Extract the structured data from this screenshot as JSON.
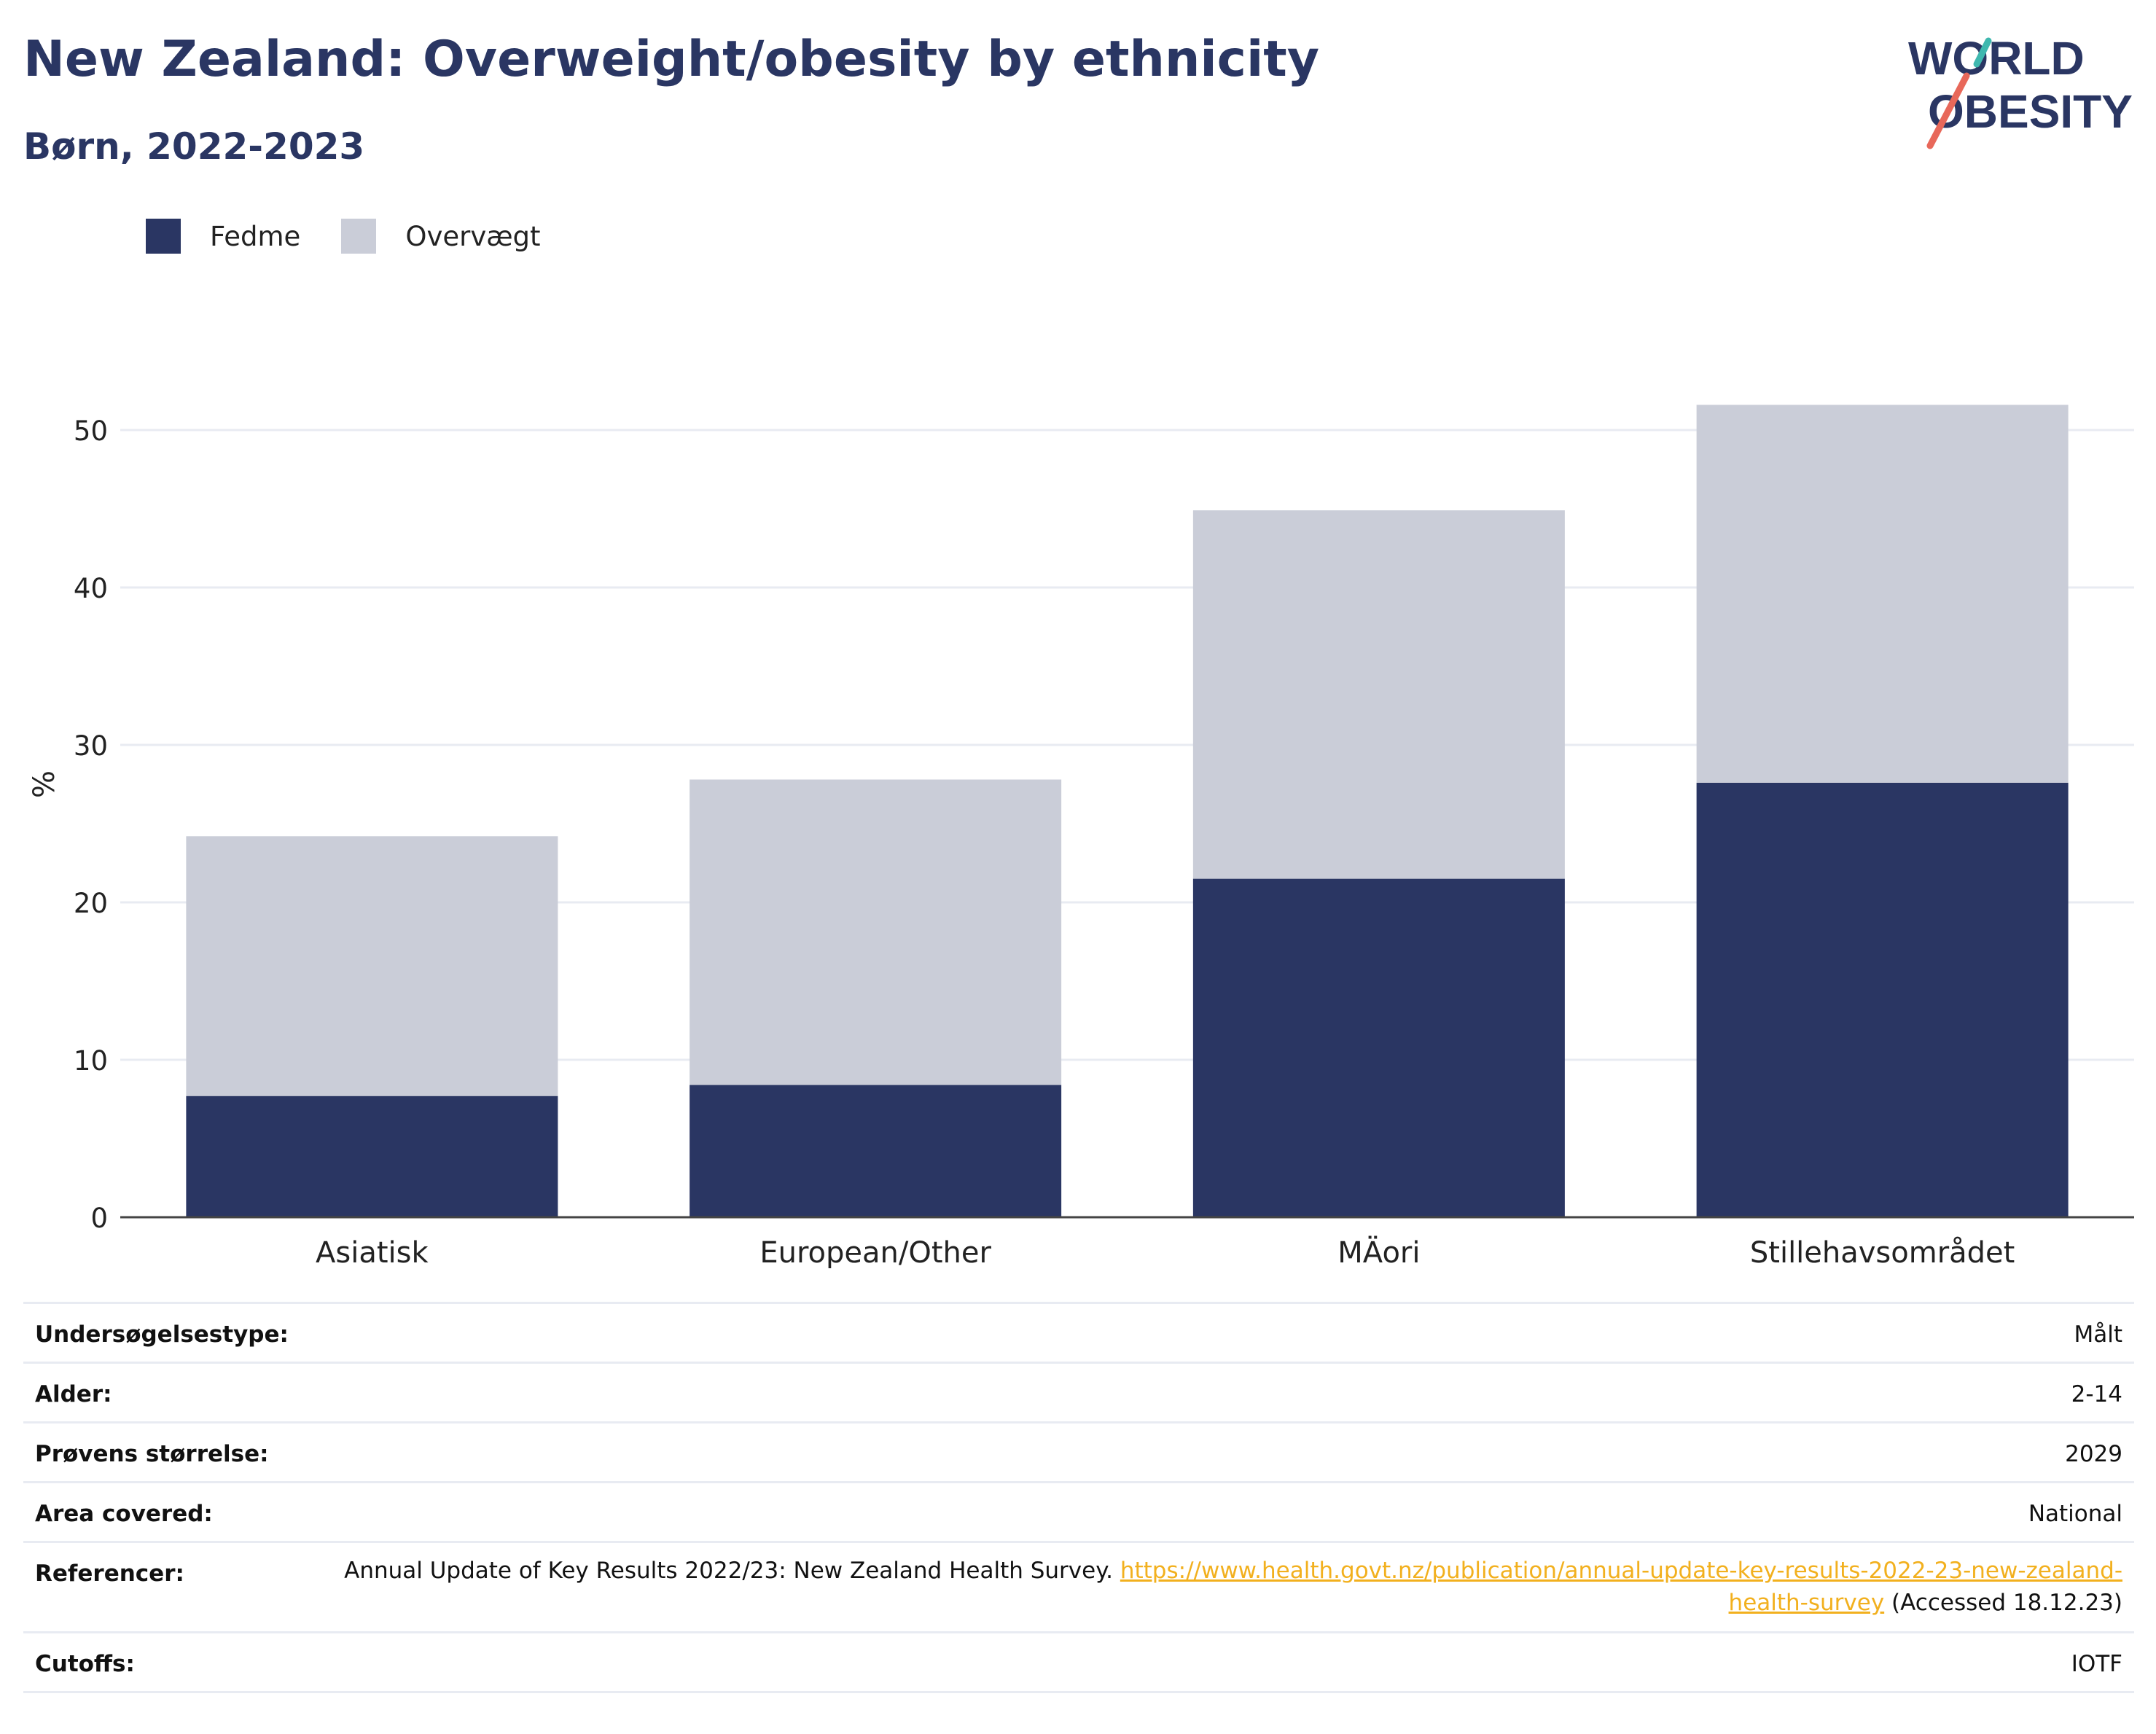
{
  "header": {
    "title": "New Zealand: Overweight/obesity by ethnicity",
    "subtitle": "Børn, 2022-2023"
  },
  "logo": {
    "line1": "WORLD",
    "line2": "OBESITY"
  },
  "colors": {
    "obesity": "#2a3663",
    "overweight": "#cacdd8",
    "accent_teal": "#3fb8af",
    "accent_red": "#e8685a",
    "link": "#f2b01e"
  },
  "chart_data": {
    "type": "bar",
    "stacked": true,
    "categories": [
      "Asiatisk",
      "European/Other",
      "MÄori",
      "Stillehavsområdet"
    ],
    "series": [
      {
        "name": "Fedme",
        "color": "#2a3663",
        "values": [
          7.7,
          8.4,
          21.5,
          27.6
        ]
      },
      {
        "name": "Overvægt",
        "color": "#cacdd8",
        "values": [
          16.5,
          19.4,
          23.4,
          24.0
        ]
      }
    ],
    "ylabel": "%",
    "ylim": [
      0,
      55
    ],
    "yticks": [
      0,
      10,
      20,
      30,
      40,
      50
    ],
    "grid": true,
    "legend_position": "top-left"
  },
  "meta": [
    {
      "label": "Undersøgelsestype:",
      "value": "Målt"
    },
    {
      "label": "Alder:",
      "value": "2-14"
    },
    {
      "label": "Prøvens størrelse:",
      "value": "2029"
    },
    {
      "label": "Area covered:",
      "value": "National"
    },
    {
      "label": "Referencer:",
      "value": "Annual Update of Key Results 2022/23: New Zealand Health Survey.",
      "link": "https://www.health.govt.nz/publication/annual-update-key-results-2022-23-new-zealand-health-survey",
      "suffix": "(Accessed 18.12.23)"
    },
    {
      "label": "Cutoffs:",
      "value": "IOTF"
    }
  ]
}
